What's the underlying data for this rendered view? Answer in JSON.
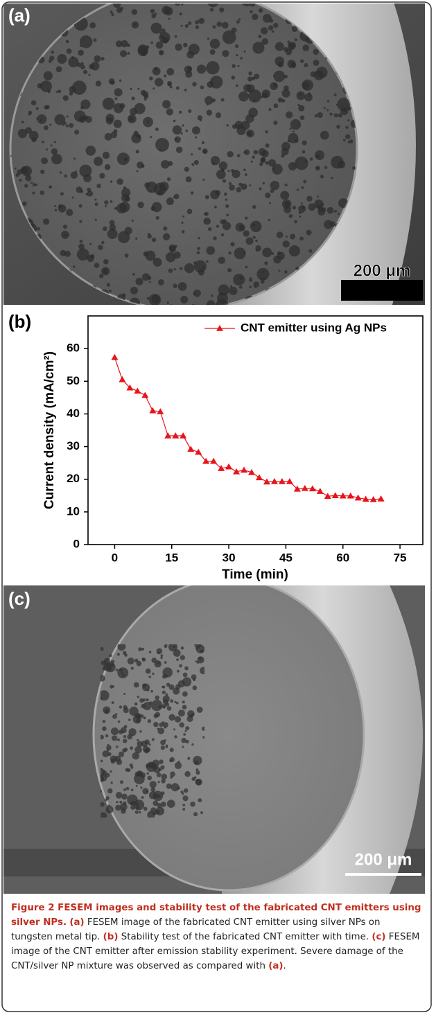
{
  "panels": {
    "a": {
      "label": "(a)",
      "scale_bar": "200 μm"
    },
    "c": {
      "label": "(c)",
      "scale_bar": "200 μm"
    }
  },
  "chart_data": {
    "type": "line",
    "panel_label": "(b)",
    "x_label": "Time (min)",
    "y_label": "Current density (mA/cm²)",
    "x": [
      0,
      2,
      4,
      6,
      8,
      10,
      12,
      14,
      16,
      18,
      20,
      22,
      24,
      26,
      28,
      30,
      32,
      34,
      36,
      38,
      40,
      42,
      44,
      46,
      48,
      50,
      52,
      54,
      56,
      58,
      60,
      62,
      64,
      66,
      68,
      70
    ],
    "series": [
      {
        "name": "CNT emitter using Ag NPs",
        "color": "#e8141b",
        "values": [
          57.3,
          50.5,
          48,
          47,
          45.7,
          41,
          40.7,
          33.3,
          33.3,
          33.3,
          29.2,
          28.3,
          25.5,
          25.5,
          23.3,
          23.8,
          22.3,
          22.8,
          22.1,
          20.5,
          19.2,
          19.3,
          19.3,
          19.3,
          17,
          17.2,
          17.1,
          16.3,
          14.8,
          15,
          14.9,
          14.9,
          14.3,
          13.9,
          13.8,
          14
        ]
      }
    ],
    "xlim": [
      -7,
      81
    ],
    "ylim": [
      0,
      70
    ],
    "xticks": [
      0,
      15,
      30,
      45,
      60,
      75
    ],
    "yticks": [
      0,
      10,
      20,
      30,
      40,
      50,
      60
    ],
    "legend": "top"
  },
  "caption": {
    "title": "Figure 2 FESEM images and stability test of the fabricated CNT emitters using silver NPs.",
    "parts": [
      "(a)",
      " FESEM image of the fabricated CNT emitter using silver NPs on tungsten metal tip. ",
      "(b)",
      " Stability test of the fabricated CNT emitter with time. ",
      "(c)",
      " FESEM image of the CNT emitter after emission stability experiment. Severe damage of the CNT/silver NP mixture was observed as compared with ",
      "(a)",
      "."
    ]
  }
}
